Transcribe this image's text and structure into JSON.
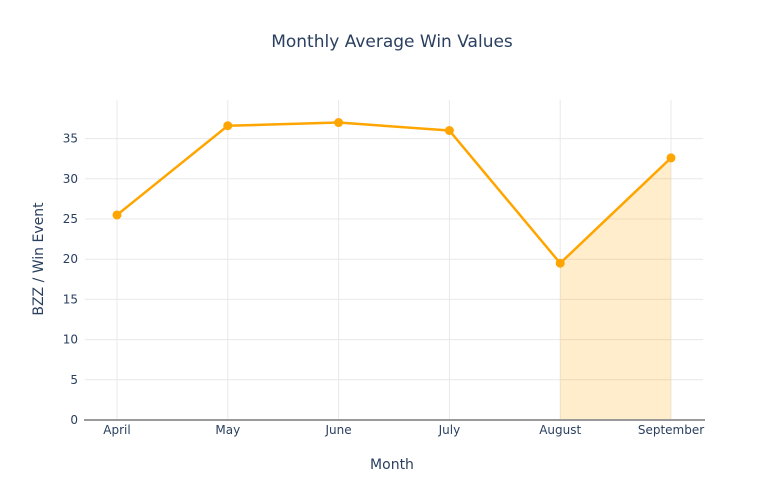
{
  "chart_data": {
    "type": "line",
    "title": "Monthly Average Win Values",
    "xlabel": "Month",
    "ylabel": "BZZ / Win Event",
    "categories": [
      "April",
      "May",
      "June",
      "July",
      "August",
      "September"
    ],
    "values": [
      25.5,
      36.6,
      37.0,
      36.0,
      19.5,
      32.6
    ],
    "yticks": [
      0,
      5,
      10,
      15,
      20,
      25,
      30,
      35
    ],
    "ylim": [
      0,
      39.8
    ],
    "grid": true,
    "legend": "none",
    "line_color": "#FFA500",
    "marker_color": "#FFA500",
    "highlight_area": {
      "from_category": "August",
      "to_category": "September",
      "baseline": 0,
      "fill_color": "rgba(255,165,0,0.2)"
    }
  },
  "colors": {
    "background": "#ffffff",
    "text": "#2a3f5f",
    "grid": "#e8e8e8",
    "axis_line": "#9a9a9a"
  }
}
